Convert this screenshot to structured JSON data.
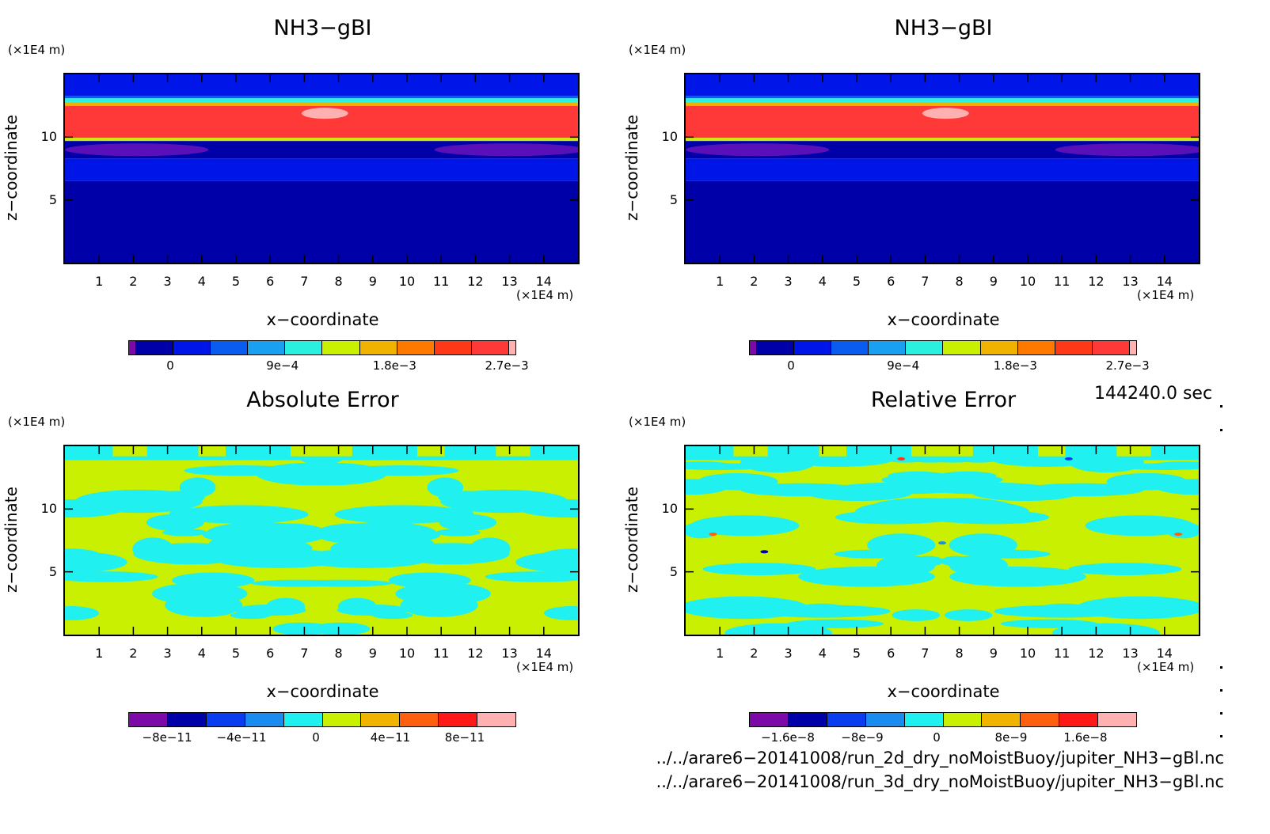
{
  "panels": [
    {
      "title": "NH3−gBI",
      "yunit": "(×1E4 m)",
      "xunit": "(×1E4 m)",
      "xlabel": "x−coordinate",
      "ylabel": "z−coordinate",
      "xticks": [
        "1",
        "2",
        "3",
        "4",
        "5",
        "6",
        "7",
        "8",
        "9",
        "10",
        "11",
        "12",
        "13",
        "14"
      ],
      "yticks": [
        "10",
        "5"
      ],
      "colorbar": {
        "colors": [
          "#7b0aa8",
          "#0000a8",
          "#0016e8",
          "#0a5cf0",
          "#1aa0f0",
          "#2af0e0",
          "#c8f000",
          "#f0b400",
          "#ff7800",
          "#ff3818",
          "#ff3838",
          "#ffb0b0"
        ],
        "labels": [
          "0",
          "9e−4",
          "1.8e−3",
          "2.7e−3"
        ]
      }
    },
    {
      "title": "NH3−gBI",
      "yunit": "(×1E4 m)",
      "xunit": "(×1E4 m)",
      "xlabel": "x−coordinate",
      "ylabel": "z−coordinate",
      "xticks": [
        "1",
        "2",
        "3",
        "4",
        "5",
        "6",
        "7",
        "8",
        "9",
        "10",
        "11",
        "12",
        "13",
        "14"
      ],
      "yticks": [
        "10",
        "5"
      ],
      "colorbar": {
        "colors": [
          "#7b0aa8",
          "#0000a8",
          "#0016e8",
          "#0a5cf0",
          "#1aa0f0",
          "#2af0e0",
          "#c8f000",
          "#f0b400",
          "#ff7800",
          "#ff3818",
          "#ff3838",
          "#ffb0b0"
        ],
        "labels": [
          "0",
          "9e−4",
          "1.8e−3",
          "2.7e−3"
        ]
      }
    },
    {
      "title": "Absolute Error",
      "yunit": "(×1E4 m)",
      "xunit": "(×1E4 m)",
      "xlabel": "x−coordinate",
      "ylabel": "z−coordinate",
      "xticks": [
        "1",
        "2",
        "3",
        "4",
        "5",
        "6",
        "7",
        "8",
        "9",
        "10",
        "11",
        "12",
        "13",
        "14"
      ],
      "yticks": [
        "10",
        "5"
      ],
      "colorbar": {
        "colors": [
          "#7b0aa8",
          "#0000a8",
          "#0a3cf0",
          "#1a8cf0",
          "#20f0f0",
          "#c8f000",
          "#f0b400",
          "#ff6010",
          "#ff1818",
          "#ffb0b0"
        ],
        "labels": [
          "−8e−11",
          "−4e−11",
          "0",
          "4e−11",
          "8e−11"
        ]
      }
    },
    {
      "title": "Relative Error",
      "yunit": "(×1E4 m)",
      "xunit": "(×1E4 m)",
      "xlabel": "x−coordinate",
      "ylabel": "z−coordinate",
      "xticks": [
        "1",
        "2",
        "3",
        "4",
        "5",
        "6",
        "7",
        "8",
        "9",
        "10",
        "11",
        "12",
        "13",
        "14"
      ],
      "yticks": [
        "10",
        "5"
      ],
      "colorbar": {
        "colors": [
          "#7b0aa8",
          "#0000a8",
          "#0a3cf0",
          "#1a8cf0",
          "#20f0f0",
          "#c8f000",
          "#f0b400",
          "#ff6010",
          "#ff1818",
          "#ffb0b0"
        ],
        "labels": [
          "−1.6e−8",
          "−8e−9",
          "0",
          "8e−9",
          "1.6e−8"
        ]
      }
    }
  ],
  "timestamp": "144240.0 sec",
  "files": [
    "../../arare6−20141008/run_2d_dry_noMoistBuoy/jupiter_NH3−gBl.nc",
    "../../arare6−20141008/run_3d_dry_noMoistBuoy/jupiter_NH3−gBl.nc"
  ],
  "chart_data": [
    {
      "type": "heatmap",
      "title": "NH3−gBI",
      "xlabel": "x−coordinate",
      "ylabel": "z−coordinate",
      "x_unit": "×1E4 m",
      "y_unit": "×1E4 m",
      "xlim": [
        0,
        15
      ],
      "ylim": [
        0,
        15
      ],
      "colorbar_labels": [
        "0",
        "9e−4",
        "1.8e−3",
        "2.7e−3"
      ],
      "bands": [
        {
          "z": [
            0,
            6.5
          ],
          "level": "lowest"
        },
        {
          "z": [
            6.5,
            8.3
          ],
          "level": "low"
        },
        {
          "z": [
            8.3,
            9.7
          ],
          "level": "near 0"
        },
        {
          "z": [
            9.7,
            12.5
          ],
          "level": "max ~2.7e−3"
        },
        {
          "z": [
            12.5,
            13.3
          ],
          "level": "transition"
        },
        {
          "z": [
            13.3,
            15
          ],
          "level": "near 0"
        }
      ]
    },
    {
      "type": "heatmap",
      "title": "NH3−gBI",
      "xlabel": "x−coordinate",
      "ylabel": "z−coordinate",
      "x_unit": "×1E4 m",
      "y_unit": "×1E4 m",
      "xlim": [
        0,
        15
      ],
      "ylim": [
        0,
        15
      ],
      "colorbar_labels": [
        "0",
        "9e−4",
        "1.8e−3",
        "2.7e−3"
      ],
      "bands": [
        {
          "z": [
            0,
            6.5
          ],
          "level": "lowest"
        },
        {
          "z": [
            6.5,
            8.3
          ],
          "level": "low"
        },
        {
          "z": [
            8.3,
            9.7
          ],
          "level": "near 0"
        },
        {
          "z": [
            9.7,
            12.5
          ],
          "level": "max ~2.7e−3"
        },
        {
          "z": [
            12.5,
            13.3
          ],
          "level": "transition"
        },
        {
          "z": [
            13.3,
            15
          ],
          "level": "near 0"
        }
      ]
    },
    {
      "type": "heatmap",
      "title": "Absolute Error",
      "xlabel": "x−coordinate",
      "ylabel": "z−coordinate",
      "x_unit": "×1E4 m",
      "y_unit": "×1E4 m",
      "xlim": [
        0,
        15
      ],
      "ylim": [
        0,
        15
      ],
      "colorbar_labels": [
        "−8e−11",
        "−4e−11",
        "0",
        "4e−11",
        "8e−11"
      ],
      "value_range": [
        -1e-11,
        1e-11
      ]
    },
    {
      "type": "heatmap",
      "title": "Relative Error",
      "xlabel": "x−coordinate",
      "ylabel": "z−coordinate",
      "x_unit": "×1E4 m",
      "y_unit": "×1E4 m",
      "xlim": [
        0,
        15
      ],
      "ylim": [
        0,
        15
      ],
      "colorbar_labels": [
        "−1.6e−8",
        "−8e−9",
        "0",
        "8e−9",
        "1.6e−8"
      ],
      "value_range": [
        -2e-09,
        2e-09
      ]
    }
  ]
}
